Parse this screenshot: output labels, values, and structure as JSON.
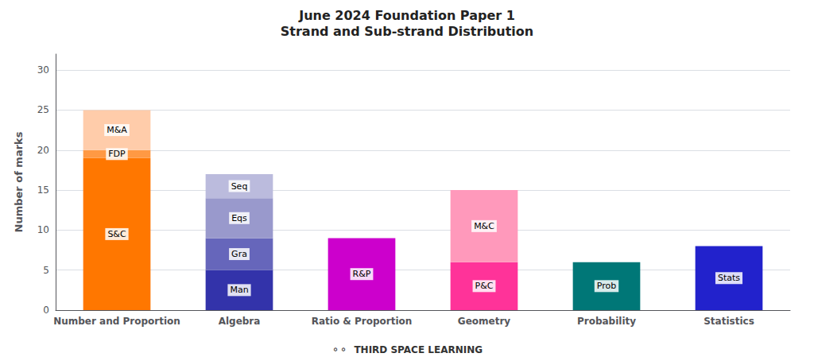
{
  "chart_data": {
    "type": "bar",
    "title": "June 2024 Foundation Paper 1",
    "subtitle": "Strand and Sub-strand Distribution",
    "y_label": "Number of marks",
    "categories": [
      "Number and Proportion",
      "Algebra",
      "Ratio & Proportion",
      "Geometry",
      "Probability",
      "Statistics"
    ],
    "stacked": true,
    "series": [
      {
        "name": "S&C",
        "color": "#FF7700",
        "values": [
          19,
          null,
          null,
          null,
          null,
          null
        ]
      },
      {
        "name": "FDP",
        "color": "#FF9944",
        "values": [
          1,
          null,
          null,
          null,
          null,
          null
        ]
      },
      {
        "name": "M&A",
        "color": "#FFCCAA",
        "values": [
          5,
          null,
          null,
          null,
          null,
          null
        ]
      },
      {
        "name": "Man",
        "color": "#3333AA",
        "values": [
          null,
          5,
          null,
          null,
          null,
          null
        ]
      },
      {
        "name": "Gra",
        "color": "#6666BB",
        "values": [
          null,
          4,
          null,
          null,
          null,
          null
        ]
      },
      {
        "name": "Eqs",
        "color": "#9999CC",
        "values": [
          null,
          5,
          null,
          null,
          null,
          null
        ]
      },
      {
        "name": "Seq",
        "color": "#BBBBDD",
        "values": [
          null,
          3,
          null,
          null,
          null,
          null
        ]
      },
      {
        "name": "R&P",
        "color": "#CC00CC",
        "values": [
          null,
          null,
          9,
          null,
          null,
          null
        ]
      },
      {
        "name": "P&C",
        "color": "#FF3399",
        "values": [
          null,
          null,
          null,
          6,
          null,
          null
        ]
      },
      {
        "name": "M&C",
        "color": "#FF99BB",
        "values": [
          null,
          null,
          null,
          9,
          null,
          null
        ]
      },
      {
        "name": "Prob",
        "color": "#007777",
        "values": [
          null,
          null,
          null,
          null,
          6,
          null
        ]
      },
      {
        "name": "Stats",
        "color": "#2222CC",
        "values": [
          null,
          null,
          null,
          null,
          null,
          8
        ]
      }
    ],
    "ylim": [
      0,
      32
    ],
    "yticks": [
      0,
      5,
      10,
      15,
      20,
      25,
      30
    ],
    "grid": true,
    "annotations": [
      "⚬⚬  THIRD SPACE LEARNING"
    ]
  }
}
